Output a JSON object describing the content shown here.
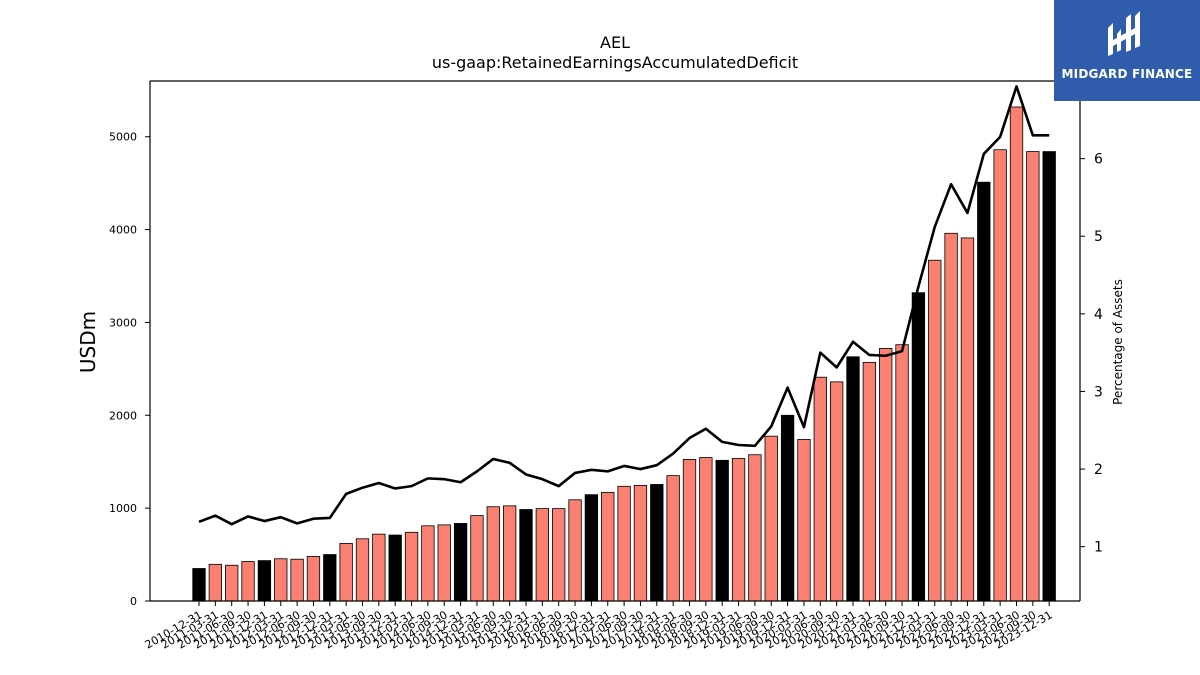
{
  "brand": {
    "name": "MIDGARD FINANCE",
    "color": "#2f5cab"
  },
  "chart_data": {
    "type": "bar",
    "title": "AEL",
    "subtitle": "us-gaap:RetainedEarningsAccumulatedDeficit",
    "ylabel": "USDm",
    "y2label": "Percentage of Assets",
    "ylim": [
      0,
      5600
    ],
    "y2lim": [
      0.3,
      7.0
    ],
    "yticks": [
      0,
      1000,
      2000,
      3000,
      4000,
      5000
    ],
    "y2ticks": [
      1,
      2,
      3,
      4,
      5,
      6
    ],
    "colors": {
      "year_end": "#000000",
      "quarter": "#fa8072",
      "line": "#000000"
    },
    "categories": [
      "2010-12-31",
      "2011-03-31",
      "2011-06-30",
      "2011-09-30",
      "2011-12-31",
      "2012-03-31",
      "2012-06-30",
      "2012-09-30",
      "2012-12-31",
      "2013-03-31",
      "2013-06-30",
      "2013-09-30",
      "2013-12-31",
      "2014-03-31",
      "2014-06-30",
      "2014-09-30",
      "2014-12-31",
      "2015-03-31",
      "2015-06-30",
      "2015-09-30",
      "2015-12-31",
      "2016-03-31",
      "2016-06-30",
      "2016-09-30",
      "2016-12-31",
      "2017-03-31",
      "2017-06-30",
      "2017-09-30",
      "2017-12-31",
      "2018-03-31",
      "2018-06-30",
      "2018-09-30",
      "2018-12-31",
      "2019-03-31",
      "2019-06-30",
      "2019-09-30",
      "2019-12-31",
      "2020-03-31",
      "2020-06-30",
      "2020-09-30",
      "2020-12-31",
      "2021-03-31",
      "2021-06-30",
      "2021-09-30",
      "2021-12-31",
      "2022-03-31",
      "2022-06-30",
      "2022-09-30",
      "2022-12-31",
      "2023-03-31",
      "2023-06-30",
      "2023-09-30",
      "2023-12-31"
    ],
    "series": [
      {
        "values": [
          350,
          395,
          385,
          425,
          435,
          455,
          450,
          480,
          500,
          620,
          670,
          720,
          710,
          740,
          810,
          820,
          835,
          920,
          1015,
          1025,
          985,
          995,
          995,
          1090,
          1145,
          1170,
          1235,
          1245,
          1255,
          1350,
          1525,
          1545,
          1515,
          1535,
          1575,
          1775,
          2000,
          1740,
          2410,
          2360,
          2630,
          2570,
          2720,
          2760,
          3320,
          3670,
          3960,
          3910,
          4510,
          4860,
          5320,
          4840,
          4840
        ],
        "kind": "bar"
      },
      {
        "values": [
          1.32,
          1.4,
          1.29,
          1.39,
          1.33,
          1.38,
          1.3,
          1.36,
          1.37,
          1.68,
          1.76,
          1.82,
          1.75,
          1.78,
          1.88,
          1.87,
          1.83,
          1.97,
          2.13,
          2.08,
          1.93,
          1.87,
          1.78,
          1.95,
          1.99,
          1.97,
          2.04,
          2.0,
          2.05,
          2.2,
          2.4,
          2.52,
          2.35,
          2.31,
          2.3,
          2.55,
          3.05,
          2.54,
          3.5,
          3.31,
          3.64,
          3.47,
          3.46,
          3.52,
          4.35,
          5.12,
          5.67,
          5.3,
          6.06,
          6.28,
          6.93,
          6.3,
          6.3
        ],
        "kind": "line",
        "axis": "percent"
      }
    ],
    "grid": false,
    "legend": "none"
  }
}
